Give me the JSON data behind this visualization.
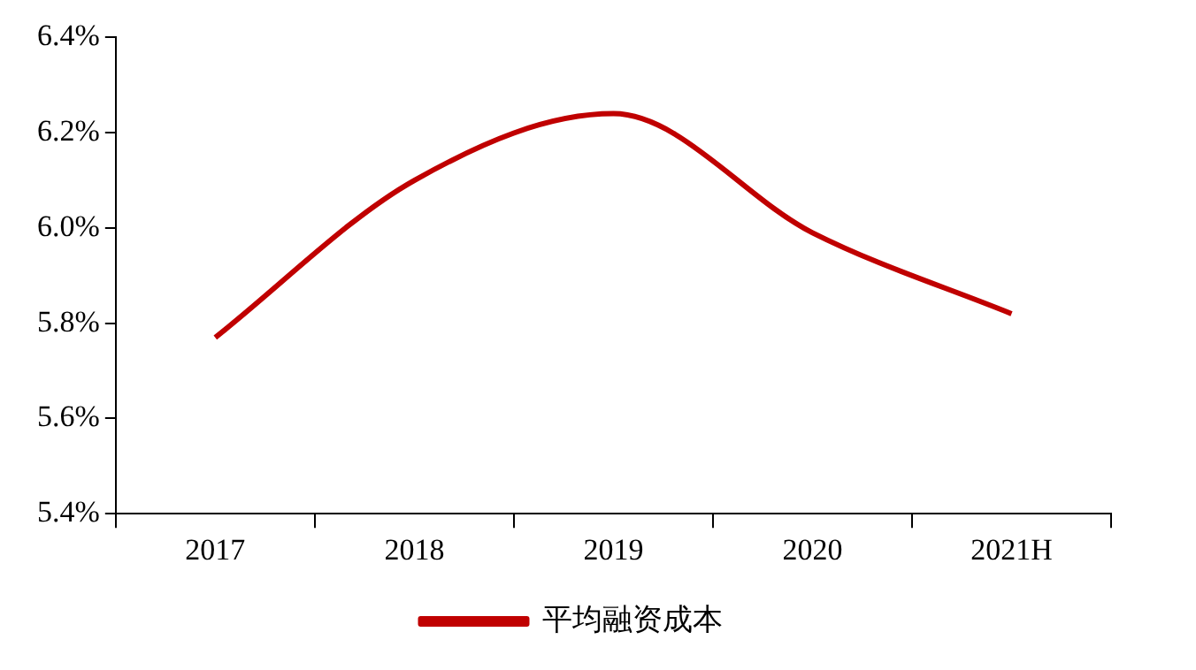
{
  "chart_data": {
    "type": "line",
    "categories": [
      "2017",
      "2018",
      "2019",
      "2020",
      "2021H"
    ],
    "series": [
      {
        "name": "平均融资成本",
        "color": "#c00000",
        "values": [
          5.77,
          6.1,
          6.24,
          5.99,
          5.82
        ]
      }
    ],
    "ylim": [
      5.4,
      6.4
    ],
    "yticks": [
      {
        "value": 5.4,
        "label": "5.4%"
      },
      {
        "value": 5.6,
        "label": "5.6%"
      },
      {
        "value": 5.8,
        "label": "5.8%"
      },
      {
        "value": 6.0,
        "label": "6.0%"
      },
      {
        "value": 6.2,
        "label": "6.2%"
      },
      {
        "value": 6.4,
        "label": "6.4%"
      }
    ],
    "grid": false,
    "legend": "bottom",
    "marker": "none",
    "line_style": "solid"
  }
}
